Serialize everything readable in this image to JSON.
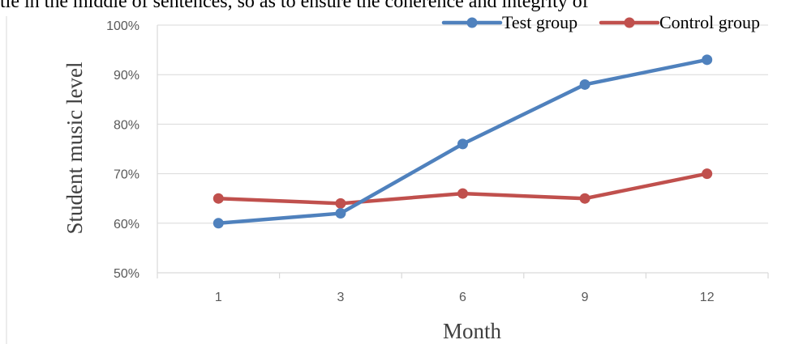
{
  "page_text": "tle in the middle of sentences, so as to ensure the coherence and integrity of",
  "colors": {
    "test": "#4f81bd",
    "control": "#c0504d",
    "grid": "#d9d9d9",
    "tick": "#595959"
  },
  "chart_data": {
    "type": "line",
    "categories": [
      "1",
      "3",
      "6",
      "9",
      "12"
    ],
    "series": [
      {
        "name": "Test group",
        "values": [
          60,
          62,
          76,
          88,
          93
        ]
      },
      {
        "name": "Control group",
        "values": [
          65,
          64,
          66,
          65,
          70
        ]
      }
    ],
    "xlabel": "Month",
    "ylabel": "Student music level",
    "ylim": [
      50,
      100
    ],
    "yticks": [
      "50%",
      "60%",
      "70%",
      "80%",
      "90%",
      "100%"
    ],
    "grid": true,
    "legend": "top-right",
    "marker": "circle"
  }
}
